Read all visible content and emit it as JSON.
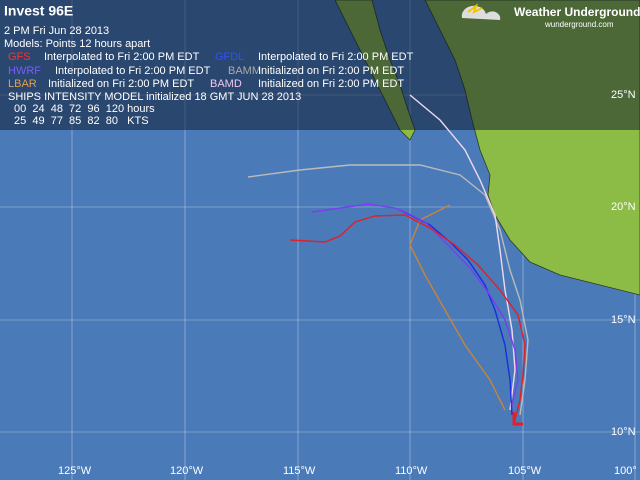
{
  "header": {
    "title": "Invest 96E",
    "time": "2 PM  Fri Jun 28 2013",
    "models": "Models:  Points 12 hours apart"
  },
  "models": [
    {
      "name": "GFS",
      "note": "Interpolated to Fri 2:00 PM EDT"
    },
    {
      "name": "GFDL",
      "note": "Interpolated to Fri 2:00 PM EDT"
    },
    {
      "name": "HWRF",
      "note": "Interpolated to Fri 2:00 PM EDT"
    },
    {
      "name": "BAMM",
      "note": "Initialized on Fri 2:00 PM EDT"
    },
    {
      "name": "LBAR",
      "note": "Initialized on Fri 2:00 PM EDT"
    },
    {
      "name": "BAMD",
      "note": "Initialized on Fri 2:00 PM EDT"
    }
  ],
  "ships": {
    "title": "SHIPS INTENSITY MODEL initialized 18 GMT JUN 28 2013",
    "hours": "00  24  48  72  96  120 hours",
    "kts": "25  49  77  85  82  80   KTS"
  },
  "logo": {
    "name": "Weather Underground",
    "url": "wunderground.com"
  },
  "axes": {
    "lon_labels": [
      "125°W",
      "120°W",
      "115°W",
      "110°W",
      "105°W",
      "100°"
    ],
    "lat_labels": [
      "25°N",
      "20°N",
      "15°N",
      "10°N"
    ]
  }
}
